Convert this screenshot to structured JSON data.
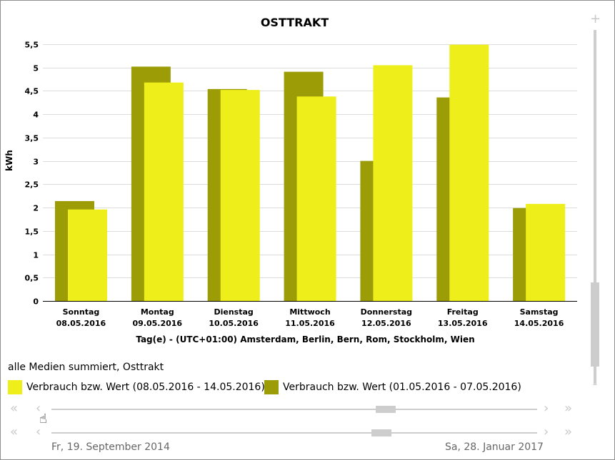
{
  "chart_data": {
    "type": "bar",
    "title": "OSTTRAKT",
    "ylabel": "kWh",
    "xlabel": "Tag(e) - (UTC+01:00) Amsterdam, Berlin, Bern, Rom, Stockholm, Wien",
    "ylim": [
      0,
      5.5
    ],
    "yticks": [
      "0",
      "0,5",
      "1",
      "1,5",
      "2",
      "2,5",
      "3",
      "3,5",
      "4",
      "4,5",
      "5",
      "5,5"
    ],
    "grid": true,
    "categories": [
      {
        "day": "Sonntag",
        "date": "08.05.2016"
      },
      {
        "day": "Montag",
        "date": "09.05.2016"
      },
      {
        "day": "Dienstag",
        "date": "10.05.2016"
      },
      {
        "day": "Mittwoch",
        "date": "11.05.2016"
      },
      {
        "day": "Donnerstag",
        "date": "12.05.2016"
      },
      {
        "day": "Freitag",
        "date": "13.05.2016"
      },
      {
        "day": "Samstag",
        "date": "14.05.2016"
      }
    ],
    "series": [
      {
        "name": "Verbrauch bzw. Wert (01.05.2016 - 07.05.2016)",
        "color": "#9c9c06",
        "values": [
          2.14,
          5.02,
          4.54,
          4.91,
          3.0,
          4.36,
          1.99
        ]
      },
      {
        "name": "Verbrauch bzw. Wert (08.05.2016 - 14.05.2016)",
        "color": "#eeee1a",
        "values": [
          1.96,
          4.68,
          4.52,
          4.38,
          5.05,
          5.49,
          2.08
        ]
      }
    ],
    "legend_position": "bottom-left"
  },
  "legend": {
    "caption": "alle Medien summiert, Osttrakt",
    "item1": "Verbrauch bzw. Wert (08.05.2016 - 14.05.2016)",
    "item2": "Verbrauch bzw. Wert (01.05.2016 - 07.05.2016)"
  },
  "zoom": {
    "plus": "+",
    "minus": "-"
  },
  "navigator": {
    "first": "«",
    "prev": "‹",
    "next": "›",
    "last": "»",
    "start_date": "Fr, 19. September 2014",
    "end_date": "Sa, 28. Januar 2017"
  }
}
